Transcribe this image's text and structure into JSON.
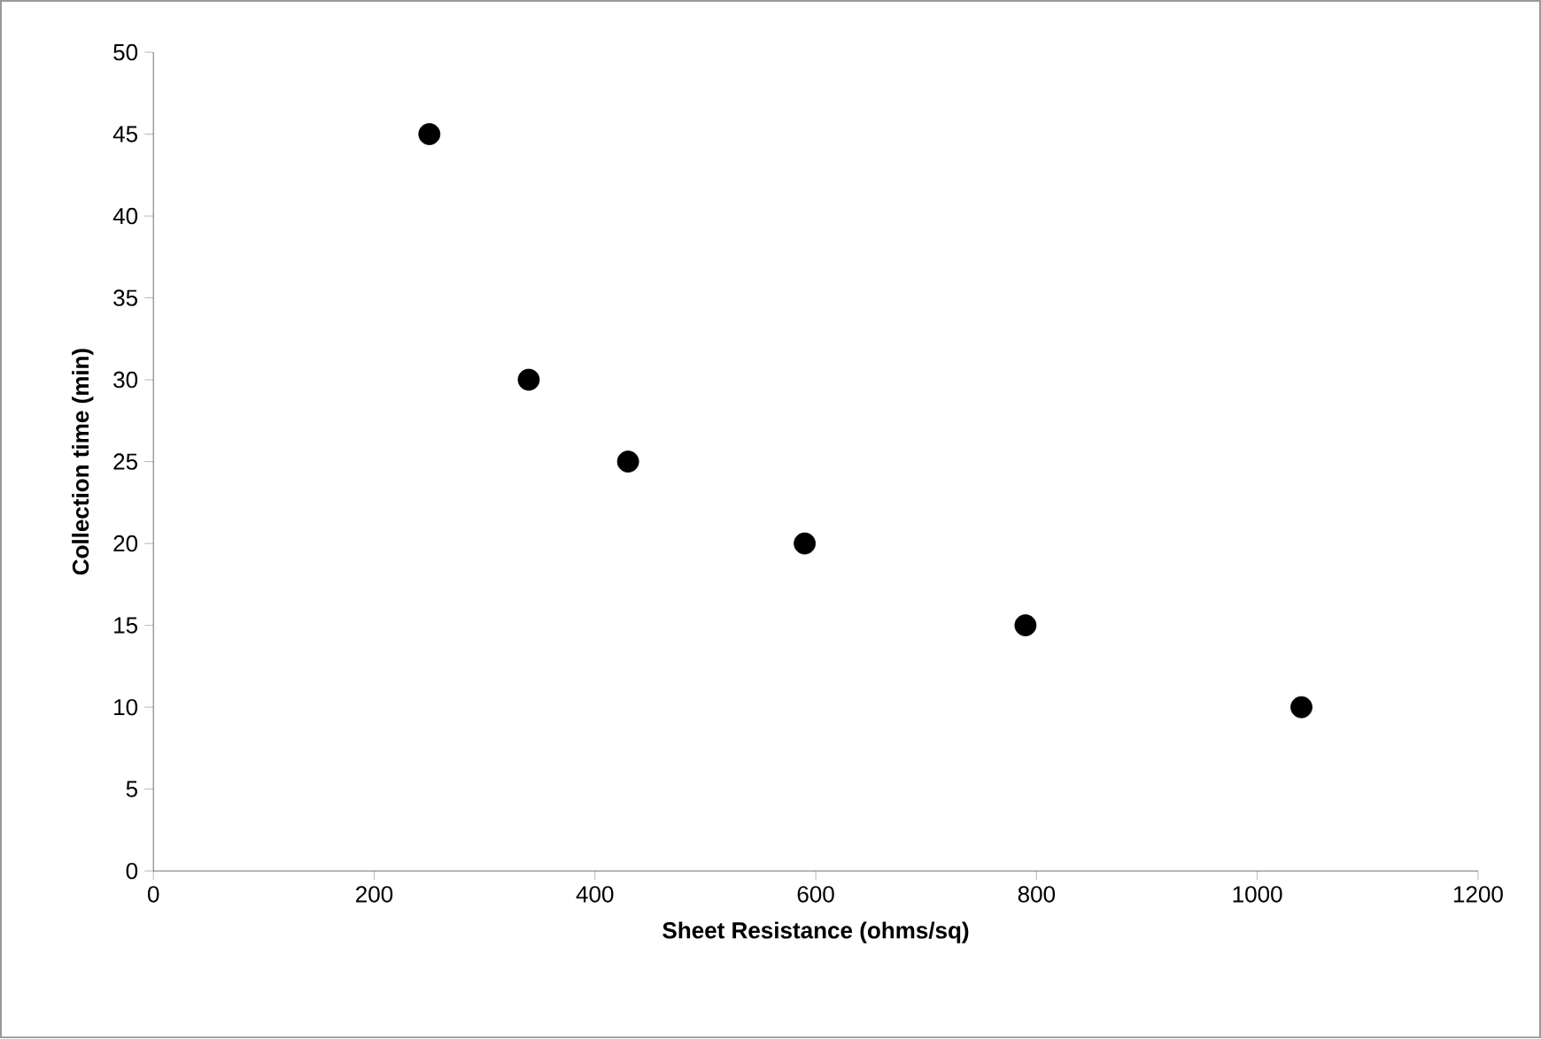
{
  "chart_data": {
    "type": "scatter",
    "xlabel": "Sheet Resistance (ohms/sq)",
    "ylabel": "Collection time (min)",
    "x": [
      250,
      340,
      430,
      590,
      790,
      1040
    ],
    "series": [
      {
        "color": "#000000",
        "values": [
          45,
          30,
          25,
          20,
          15,
          10
        ]
      }
    ],
    "xlim": [
      0,
      1200
    ],
    "xticks": [
      0,
      200,
      400,
      600,
      800,
      1000,
      1200
    ],
    "ylim": [
      0,
      50
    ],
    "yticks": [
      0,
      5,
      10,
      15,
      20,
      25,
      30,
      35,
      40,
      45,
      50
    ],
    "grid": false
  }
}
